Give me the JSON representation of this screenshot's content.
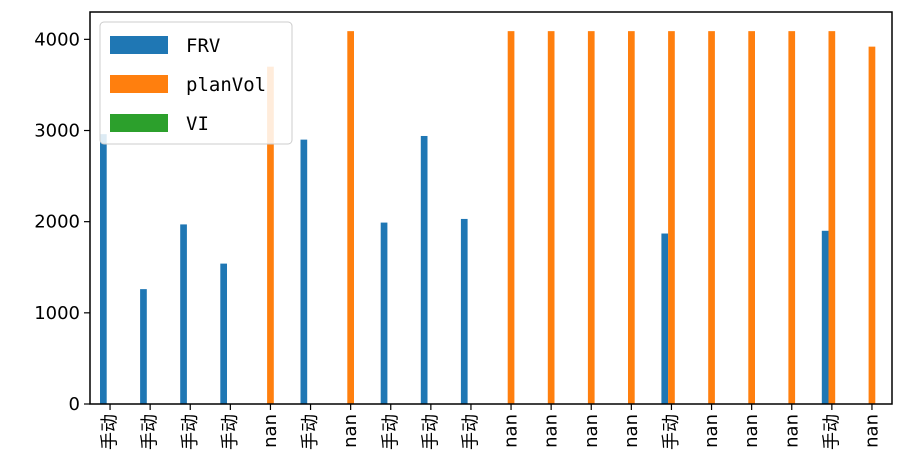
{
  "chart_data": {
    "type": "bar",
    "categories": [
      "手动",
      "手动",
      "手动",
      "手动",
      "nan",
      "手动",
      "nan",
      "手动",
      "手动",
      "手动",
      "nan",
      "nan",
      "nan",
      "nan",
      "手动",
      "nan",
      "nan",
      "nan",
      "手动",
      "nan"
    ],
    "series": [
      {
        "name": "FRV",
        "color": "#1f77b4",
        "values": [
          2960,
          1260,
          1970,
          1540,
          0,
          2900,
          0,
          1990,
          2940,
          2030,
          0,
          0,
          0,
          0,
          1870,
          0,
          0,
          0,
          1900,
          0
        ]
      },
      {
        "name": "planVol",
        "color": "#ff7f0e",
        "values": [
          0,
          0,
          0,
          0,
          3700,
          0,
          4090,
          0,
          0,
          0,
          4090,
          4090,
          4090,
          4090,
          4090,
          4090,
          4090,
          4090,
          4090,
          3920
        ]
      },
      {
        "name": "VI",
        "color": "#2ca02c",
        "values": [
          0,
          0,
          0,
          0,
          0,
          0,
          0,
          0,
          0,
          0,
          0,
          0,
          0,
          0,
          0,
          0,
          0,
          0,
          0,
          0
        ]
      }
    ],
    "ylim": [
      0,
      4300
    ],
    "yticks": [
      "0",
      "1000",
      "2000",
      "3000",
      "4000"
    ],
    "legend": "top-left",
    "grid": false
  }
}
